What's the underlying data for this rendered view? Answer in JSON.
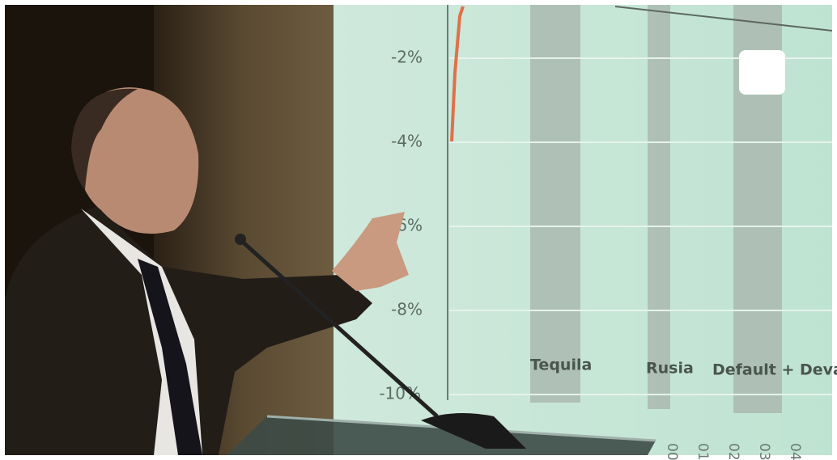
{
  "screen": {
    "y_labels": [
      "-2%",
      "-4%",
      "-6%",
      "-8%",
      "-10%"
    ],
    "annotations": [
      "Tequila",
      "Rusia",
      "Default + Deval"
    ],
    "x_labels": [
      "00",
      "01",
      "02",
      "03",
      "04"
    ]
  }
}
